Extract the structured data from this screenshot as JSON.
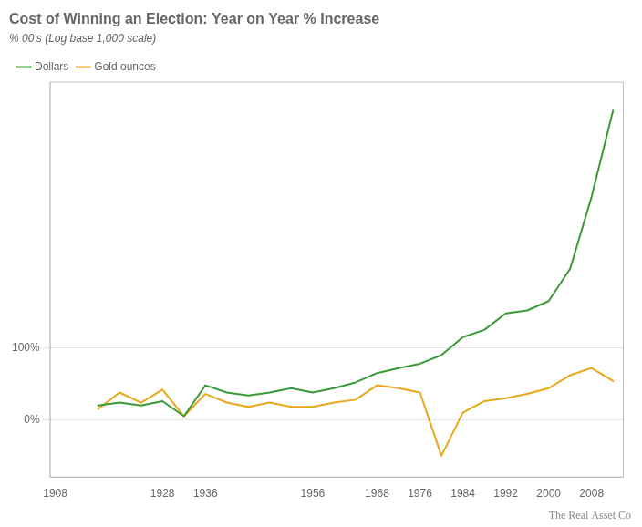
{
  "chart_data": {
    "type": "line",
    "title": "Cost of Winning an Election: Year on Year % Increase",
    "subtitle": "% 00’s (Log base 1,000 scale)",
    "annotations": [
      {
        "text": "The Real Asset Co"
      }
    ],
    "x": [
      1916,
      1920,
      1924,
      1928,
      1932,
      1936,
      1940,
      1944,
      1948,
      1952,
      1956,
      1960,
      1964,
      1968,
      1972,
      1976,
      1980,
      1984,
      1988,
      1992,
      1996,
      2000,
      2004,
      2008,
      2012
    ],
    "series": [
      {
        "name": "Dollars",
        "color": "#3a9a38",
        "values": [
          20,
          24,
          20,
          26,
          5,
          48,
          38,
          34,
          38,
          44,
          38,
          44,
          52,
          65,
          72,
          78,
          90,
          115,
          125,
          148,
          152,
          165,
          210,
          310,
          430
        ]
      },
      {
        "name": "Gold ounces",
        "color": "#e8a81a",
        "values": [
          15,
          38,
          24,
          42,
          5,
          36,
          24,
          18,
          24,
          18,
          18,
          24,
          28,
          48,
          44,
          38,
          -50,
          10,
          26,
          30,
          36,
          44,
          62,
          72,
          54
        ]
      }
    ],
    "xlim": [
      1907,
      2014
    ],
    "ylim": [
      -80,
      470
    ],
    "xticks": [
      1908,
      1928,
      1936,
      1956,
      1968,
      1976,
      1984,
      1992,
      2000,
      2008
    ],
    "yticks": [
      {
        "value": 0,
        "label": "0%"
      },
      {
        "value": 100,
        "label": "100%"
      }
    ],
    "grid": "y",
    "legend": "upper left",
    "marker": "none"
  }
}
